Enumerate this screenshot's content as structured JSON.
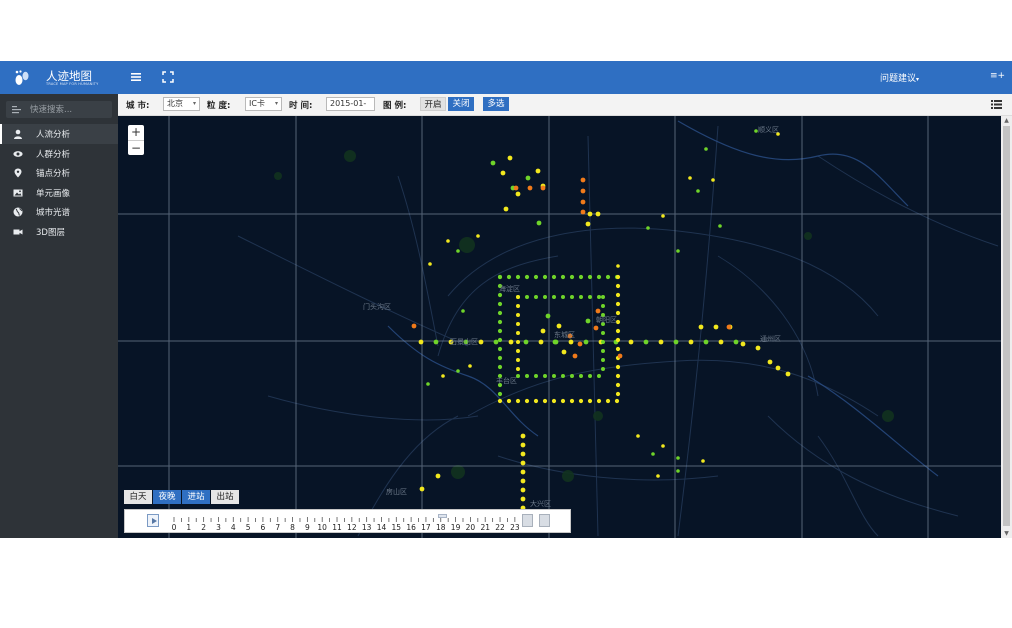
{
  "app": {
    "title": "人迹地图",
    "subtitle": "TRACE MAP FOR HUMANITY"
  },
  "header": {
    "feedback_label": "问题建议",
    "feedback_caret": "▾",
    "user_label": "≡+"
  },
  "sidebar": {
    "search_placeholder": "快速搜索...",
    "items": [
      {
        "label": "人流分析",
        "icon": "user-icon"
      },
      {
        "label": "人群分析",
        "icon": "eye-icon"
      },
      {
        "label": "锚点分析",
        "icon": "map-marker-icon"
      },
      {
        "label": "单元画像",
        "icon": "image-icon"
      },
      {
        "label": "城市光谱",
        "icon": "globe-icon"
      },
      {
        "label": "3D图层",
        "icon": "video-camera-icon"
      }
    ]
  },
  "filters": {
    "city_label": "城 市:",
    "city_value": "北京",
    "granularity_label": "粒 度:",
    "granularity_value": "IC卡",
    "time_label": "时 间:",
    "time_value": "2015-01-",
    "legend_label": "图 例:",
    "legend_on": "开启",
    "legend_off": "关闭",
    "multiselect": "多选"
  },
  "map": {
    "zoom_in": "+",
    "zoom_out": "−",
    "labels": [
      {
        "text": "门头沟区"
      },
      {
        "text": "通州区"
      },
      {
        "text": "石景山区"
      },
      {
        "text": "海淀区"
      },
      {
        "text": "丰台区"
      },
      {
        "text": "东城区"
      },
      {
        "text": "朝阳区"
      },
      {
        "text": "房山区"
      },
      {
        "text": "大兴区"
      },
      {
        "text": "顺义区"
      }
    ],
    "colors": {
      "background": "#071426",
      "green": "#6fd42a",
      "yellow": "#f2e81e",
      "orange": "#f07a1a"
    }
  },
  "modes": [
    {
      "label": "白天",
      "active": false
    },
    {
      "label": "夜晚",
      "active": true
    },
    {
      "label": "进站",
      "active": true
    },
    {
      "label": "出站",
      "active": false
    }
  ],
  "timeline": {
    "hours": [
      "0",
      "1",
      "2",
      "3",
      "4",
      "5",
      "6",
      "7",
      "8",
      "9",
      "10",
      "11",
      "12",
      "13",
      "14",
      "15",
      "16",
      "17",
      "18",
      "19",
      "20",
      "21",
      "22",
      "23"
    ],
    "current_hour": 18
  }
}
